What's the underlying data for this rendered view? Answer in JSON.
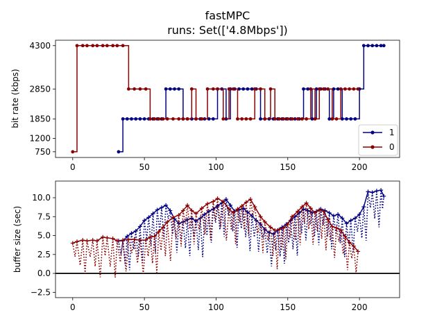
{
  "title": "fastMPC",
  "subtitle": "runs: Set(['4.8Mbps'])",
  "colors": {
    "run_1": "#000080",
    "run_0": "#8b0000",
    "axes": "#000000",
    "zero_line": "#000000"
  },
  "chart_data": [
    {
      "type": "line",
      "ylabel": "bit rate (kbps)",
      "xlim": [
        -12,
        228
      ],
      "ylim": [
        560,
        4480
      ],
      "xticks": [
        0,
        50,
        100,
        150,
        200
      ],
      "yticks": [
        750,
        1200,
        1850,
        2850,
        4300
      ],
      "legend": {
        "position": "lower-right",
        "entries": [
          "1",
          "0"
        ]
      },
      "grid": false,
      "series": [
        {
          "name": "1",
          "color_key": "run_1",
          "step": true,
          "markers": "circle",
          "x": [
            32,
            35,
            38,
            41,
            44,
            47,
            50,
            53,
            56,
            59,
            62,
            65,
            68,
            71,
            74,
            77,
            80,
            83,
            86,
            89,
            92,
            95,
            98,
            101,
            104,
            107,
            110,
            113,
            116,
            119,
            122,
            125,
            128,
            131,
            134,
            137,
            140,
            143,
            146,
            149,
            152,
            155,
            158,
            161,
            164,
            167,
            170,
            173,
            176,
            179,
            182,
            185,
            188,
            191,
            194,
            197,
            200,
            203,
            206,
            209,
            212,
            215,
            217
          ],
          "y": [
            750,
            1850,
            1850,
            1850,
            1850,
            1850,
            1850,
            1850,
            1850,
            1850,
            1850,
            2850,
            2850,
            2850,
            2850,
            1850,
            1850,
            1850,
            1850,
            1850,
            1850,
            1850,
            1850,
            2850,
            2850,
            1850,
            2850,
            2850,
            2850,
            2850,
            2850,
            2850,
            2850,
            1850,
            1850,
            1850,
            1850,
            1850,
            1850,
            1850,
            1850,
            1850,
            1850,
            2850,
            2850,
            1850,
            2850,
            2850,
            2850,
            1850,
            2850,
            2850,
            1850,
            1850,
            1850,
            1850,
            2850,
            4300,
            4300,
            4300,
            4300,
            4300,
            4300
          ]
        },
        {
          "name": "0",
          "color_key": "run_0",
          "step": true,
          "markers": "circle",
          "x": [
            0,
            3,
            7,
            10,
            14,
            17,
            21,
            24,
            28,
            31,
            35,
            39,
            43,
            47,
            51,
            54,
            57,
            60,
            63,
            66,
            70,
            74,
            77,
            80,
            83,
            86,
            90,
            94,
            98,
            101,
            105,
            109,
            112,
            115,
            118,
            121,
            124,
            127,
            131,
            134,
            138,
            141,
            144,
            147,
            150,
            153,
            157,
            160,
            163,
            166,
            169,
            172,
            175,
            178,
            181,
            184,
            187,
            190,
            193,
            196,
            199
          ],
          "y": [
            750,
            4300,
            4300,
            4300,
            4300,
            4300,
            4300,
            4300,
            4300,
            4300,
            4300,
            2850,
            2850,
            2850,
            2850,
            1850,
            1850,
            1850,
            1850,
            1850,
            1850,
            1850,
            1850,
            1850,
            2850,
            1850,
            1850,
            2850,
            2850,
            2850,
            1850,
            2850,
            2850,
            1850,
            1850,
            1850,
            1850,
            2850,
            2850,
            1850,
            2850,
            1850,
            1850,
            1850,
            1850,
            1850,
            1850,
            1850,
            1850,
            2850,
            1850,
            2850,
            2850,
            2850,
            1850,
            1850,
            2850,
            2850,
            2850,
            2850,
            2850
          ]
        }
      ]
    },
    {
      "type": "line",
      "ylabel": "buffer size (sec)",
      "xlim": [
        -12,
        228
      ],
      "ylim": [
        -3.2,
        12.2
      ],
      "xticks": [
        0,
        50,
        100,
        150,
        200
      ],
      "yticks": [
        -2.5,
        0.0,
        2.5,
        5.0,
        7.5,
        10.0
      ],
      "ytick_labels": [
        "−2.5",
        "0.0",
        "2.5",
        "5.0",
        "7.5",
        "10.0"
      ],
      "hline_y": 0,
      "grid": false,
      "series": [
        {
          "name": "1",
          "color_key": "run_1",
          "markers": "plus",
          "x": [
            32,
            35,
            38,
            41,
            44,
            47,
            50,
            53,
            56,
            59,
            62,
            65,
            68,
            71,
            74,
            77,
            80,
            83,
            86,
            89,
            92,
            95,
            98,
            101,
            104,
            107,
            110,
            113,
            116,
            119,
            122,
            125,
            128,
            131,
            134,
            137,
            140,
            143,
            146,
            149,
            152,
            155,
            158,
            161,
            164,
            167,
            170,
            173,
            176,
            179,
            182,
            185,
            188,
            191,
            194,
            197,
            200,
            203,
            206,
            209,
            212,
            215,
            217
          ],
          "y": [
            4.3,
            4.3,
            4.9,
            5.3,
            5.6,
            6.2,
            7.0,
            7.4,
            7.9,
            8.4,
            8.7,
            9.0,
            8.3,
            7.2,
            6.6,
            6.8,
            7.1,
            7.3,
            6.9,
            7.3,
            7.8,
            8.2,
            8.5,
            8.9,
            9.3,
            9.8,
            9.0,
            8.2,
            8.4,
            8.6,
            8.1,
            7.6,
            7.0,
            6.5,
            5.8,
            5.4,
            5.2,
            5.7,
            6.1,
            6.5,
            7.0,
            7.5,
            8.0,
            8.5,
            8.3,
            8.0,
            8.2,
            8.5,
            8.3,
            8.0,
            7.6,
            7.8,
            7.3,
            6.6,
            7.0,
            7.3,
            7.8,
            8.8,
            10.8,
            10.7,
            10.9,
            11.0,
            10.2
          ]
        },
        {
          "name": "0",
          "color_key": "run_0",
          "markers": "plus",
          "x": [
            0,
            3,
            7,
            10,
            14,
            17,
            21,
            24,
            28,
            31,
            35,
            39,
            43,
            47,
            51,
            54,
            57,
            60,
            63,
            66,
            70,
            74,
            77,
            80,
            83,
            86,
            90,
            94,
            98,
            101,
            105,
            109,
            112,
            115,
            118,
            121,
            124,
            127,
            131,
            134,
            138,
            141,
            144,
            147,
            150,
            153,
            157,
            160,
            163,
            166,
            169,
            172,
            175,
            178,
            181,
            184,
            187,
            190,
            193,
            196,
            199
          ],
          "y": [
            4.0,
            4.2,
            4.4,
            4.3,
            4.4,
            4.3,
            4.8,
            4.7,
            4.6,
            4.3,
            4.4,
            4.5,
            4.5,
            4.4,
            4.4,
            4.8,
            4.9,
            5.5,
            6.1,
            6.8,
            7.4,
            7.7,
            8.3,
            9.0,
            8.3,
            7.9,
            8.6,
            9.2,
            9.5,
            9.9,
            9.5,
            8.5,
            8.0,
            8.5,
            8.9,
            9.4,
            9.8,
            8.8,
            7.5,
            6.8,
            6.1,
            5.7,
            5.8,
            6.0,
            6.5,
            7.5,
            8.2,
            8.8,
            9.3,
            8.6,
            8.0,
            8.4,
            8.2,
            7.1,
            6.2,
            6.0,
            5.7,
            4.9,
            4.1,
            3.6,
            2.9
          ]
        }
      ]
    }
  ]
}
